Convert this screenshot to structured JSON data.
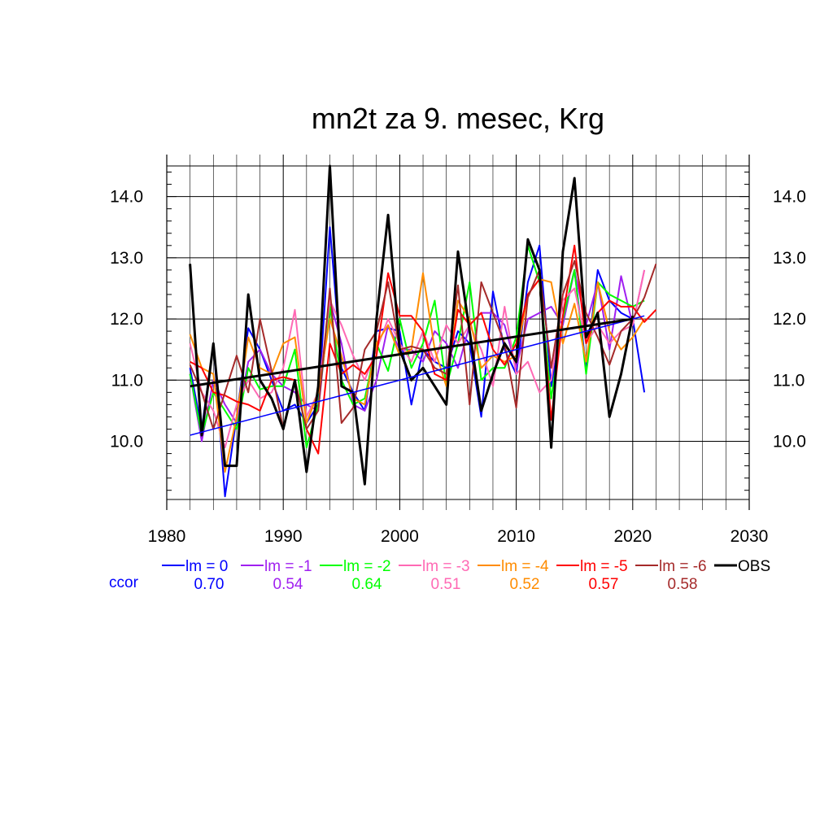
{
  "chart_data": {
    "type": "line",
    "title": "mn2t za 9. mesec, Krg",
    "xlabel": "",
    "ylabel": "",
    "xlim": [
      1980,
      2030
    ],
    "ylim": [
      9.05,
      14.5
    ],
    "x_ticks": [
      1980,
      1990,
      2000,
      2010,
      2020,
      2030
    ],
    "x_tick_labels": [
      "1980",
      "1990",
      "2000",
      "2010",
      "2020",
      "2030"
    ],
    "y_ticks": [
      10.0,
      11.0,
      12.0,
      13.0,
      14.0
    ],
    "y_tick_labels": [
      "10.0",
      "11.0",
      "12.0",
      "13.0",
      "14.0"
    ],
    "grid": true,
    "legend_position": "bottom",
    "ccor_label": "ccor",
    "series": [
      {
        "name": "lm = 0",
        "ccor": "0.70",
        "color": "#0000ff",
        "x": [
          1982,
          1983,
          1984,
          1985,
          1986,
          1987,
          1988,
          1989,
          1990,
          1991,
          1992,
          1993,
          1994,
          1995,
          1996,
          1997,
          1998,
          1999,
          2000,
          2001,
          2002,
          2003,
          2004,
          2005,
          2006,
          2007,
          2008,
          2009,
          2010,
          2011,
          2012,
          2013,
          2014,
          2015,
          2016,
          2017,
          2018,
          2019,
          2020,
          2021
        ],
        "y": [
          11.2,
          10.2,
          11.6,
          9.1,
          10.4,
          11.85,
          11.5,
          11.0,
          10.5,
          10.6,
          10.3,
          10.6,
          13.5,
          11.2,
          10.8,
          10.5,
          11.8,
          11.85,
          11.8,
          10.6,
          11.5,
          11.3,
          11.2,
          11.8,
          11.6,
          10.4,
          12.45,
          11.5,
          11.1,
          12.6,
          13.2,
          10.9,
          12.0,
          12.8,
          11.2,
          12.8,
          12.3,
          12.1,
          12.0,
          10.8
        ],
        "trend": [
          10.1,
          12.05
        ]
      },
      {
        "name": "lm = -1",
        "ccor": "0.54",
        "color": "#a020f0",
        "x": [
          1982,
          1983,
          1984,
          1985,
          1986,
          1987,
          1988,
          1989,
          1990,
          1991,
          1992,
          1993,
          1994,
          1995,
          1996,
          1997,
          1998,
          1999,
          2000,
          2001,
          2002,
          2003,
          2004,
          2005,
          2006,
          2007,
          2008,
          2009,
          2010,
          2011,
          2012,
          2013,
          2014,
          2015,
          2016,
          2017,
          2018,
          2019,
          2020,
          2021
        ],
        "y": [
          11.1,
          10.0,
          11.0,
          10.6,
          10.3,
          11.3,
          11.5,
          11.1,
          10.9,
          10.8,
          10.6,
          10.5,
          12.3,
          11.6,
          10.6,
          10.5,
          11.0,
          11.9,
          11.5,
          11.5,
          11.3,
          11.8,
          11.6,
          11.2,
          11.9,
          12.1,
          12.1,
          11.9,
          11.2,
          12.0,
          12.1,
          12.2,
          11.9,
          12.8,
          11.9,
          12.6,
          11.5,
          12.7,
          11.9,
          12.8
        ]
      },
      {
        "name": "lm = -2",
        "ccor": "0.64",
        "color": "#00ff00",
        "x": [
          1982,
          1983,
          1984,
          1985,
          1986,
          1987,
          1988,
          1989,
          1990,
          1991,
          1992,
          1993,
          1994,
          1995,
          1996,
          1997,
          1998,
          1999,
          2000,
          2001,
          2002,
          2003,
          2004,
          2005,
          2006,
          2007,
          2008,
          2009,
          2010,
          2011,
          2012,
          2013,
          2014,
          2015,
          2016,
          2017,
          2018,
          2019,
          2020,
          2021
        ],
        "y": [
          11.1,
          10.1,
          10.8,
          10.5,
          10.2,
          11.2,
          10.85,
          10.9,
          10.9,
          11.5,
          9.9,
          10.6,
          12.2,
          11.0,
          10.6,
          10.7,
          11.6,
          11.15,
          12.0,
          11.2,
          11.6,
          12.3,
          10.9,
          11.6,
          12.6,
          11.0,
          11.2,
          11.2,
          11.7,
          13.2,
          12.6,
          10.7,
          12.0,
          12.8,
          11.1,
          12.6,
          12.4,
          12.3,
          12.2,
          12.3
        ]
      },
      {
        "name": "lm = -3",
        "ccor": "0.51",
        "color": "#ff69b4",
        "x": [
          1982,
          1983,
          1984,
          1985,
          1986,
          1987,
          1988,
          1989,
          1990,
          1991,
          1992,
          1993,
          1994,
          1995,
          1996,
          1997,
          1998,
          1999,
          2000,
          2001,
          2002,
          2003,
          2004,
          2005,
          2006,
          2007,
          2008,
          2009,
          2010,
          2011,
          2012,
          2013,
          2014,
          2015,
          2016,
          2017,
          2018,
          2019,
          2020,
          2021
        ],
        "y": [
          11.6,
          10.8,
          10.5,
          9.9,
          10.6,
          11.0,
          10.7,
          10.8,
          11.2,
          12.15,
          10.4,
          10.8,
          12.3,
          11.9,
          11.4,
          11.0,
          11.5,
          12.0,
          11.6,
          11.3,
          11.8,
          11.3,
          11.9,
          11.6,
          11.9,
          11.5,
          10.9,
          12.2,
          11.1,
          11.3,
          10.8,
          11.0,
          12.3,
          12.5,
          11.6,
          11.9,
          11.6,
          11.8,
          11.9,
          12.8
        ]
      },
      {
        "name": "lm = -4",
        "ccor": "0.52",
        "color": "#ff8c00",
        "x": [
          1982,
          1983,
          1984,
          1985,
          1986,
          1987,
          1988,
          1989,
          1990,
          1991,
          1992,
          1993,
          1994,
          1995,
          1996,
          1997,
          1998,
          1999,
          2000,
          2001,
          2002,
          2003,
          2004,
          2005,
          2006,
          2007,
          2008,
          2009,
          2010,
          2011,
          2012,
          2013,
          2014,
          2015,
          2016,
          2017,
          2018,
          2019,
          2020,
          2021
        ],
        "y": [
          11.75,
          11.2,
          11.1,
          9.5,
          10.4,
          11.7,
          11.2,
          11.1,
          11.6,
          11.7,
          10.3,
          10.8,
          12.0,
          11.4,
          10.7,
          10.6,
          11.6,
          11.9,
          11.4,
          11.5,
          12.75,
          11.5,
          10.9,
          12.3,
          12.0,
          11.2,
          11.4,
          11.3,
          11.4,
          12.4,
          12.65,
          12.6,
          11.6,
          12.25,
          11.3,
          12.6,
          11.8,
          11.5,
          11.7,
          12.0
        ]
      },
      {
        "name": "lm = -5",
        "ccor": "0.57",
        "color": "#ff0000",
        "x": [
          1982,
          1983,
          1984,
          1985,
          1986,
          1987,
          1988,
          1989,
          1990,
          1991,
          1992,
          1993,
          1994,
          1995,
          1996,
          1997,
          1998,
          1999,
          2000,
          2001,
          2002,
          2003,
          2004,
          2005,
          2006,
          2007,
          2008,
          2009,
          2010,
          2011,
          2012,
          2013,
          2014,
          2015,
          2016,
          2017,
          2018,
          2019,
          2020,
          2021,
          2022
        ],
        "y": [
          11.3,
          11.2,
          10.8,
          10.75,
          10.65,
          10.6,
          10.5,
          11.0,
          11.05,
          11.0,
          10.2,
          9.8,
          11.6,
          11.1,
          11.25,
          11.1,
          11.4,
          12.75,
          12.05,
          12.05,
          11.8,
          11.1,
          11.0,
          12.15,
          11.9,
          12.1,
          11.5,
          11.25,
          11.6,
          12.4,
          12.65,
          10.35,
          12.05,
          13.2,
          11.6,
          12.1,
          12.3,
          12.2,
          12.2,
          11.95,
          12.15
        ]
      },
      {
        "name": "lm = -6",
        "ccor": "0.58",
        "color": "#a52a2a",
        "x": [
          1982,
          1983,
          1984,
          1985,
          1986,
          1987,
          1988,
          1989,
          1990,
          1991,
          1992,
          1993,
          1994,
          1995,
          1996,
          1997,
          1998,
          1999,
          2000,
          2001,
          2002,
          2003,
          2004,
          2005,
          2006,
          2007,
          2008,
          2009,
          2010,
          2011,
          2012,
          2013,
          2014,
          2015,
          2016,
          2017,
          2018,
          2019,
          2020,
          2021,
          2022
        ],
        "y": [
          11.25,
          10.8,
          10.2,
          10.8,
          11.4,
          10.8,
          12.0,
          11.15,
          10.2,
          11.0,
          10.2,
          10.5,
          12.5,
          10.3,
          10.55,
          11.5,
          11.8,
          12.6,
          11.5,
          11.55,
          11.5,
          11.2,
          11.1,
          12.55,
          10.6,
          12.6,
          12.1,
          11.6,
          10.55,
          12.35,
          12.8,
          11.2,
          12.4,
          12.95,
          12.1,
          11.7,
          11.25,
          11.8,
          12.0,
          12.35,
          12.9
        ]
      },
      {
        "name": "OBS",
        "ccor": "",
        "color": "#000000",
        "bold": true,
        "x": [
          1982,
          1983,
          1984,
          1985,
          1986,
          1987,
          1988,
          1989,
          1990,
          1991,
          1992,
          1993,
          1994,
          1995,
          1996,
          1997,
          1998,
          1999,
          2000,
          2001,
          2002,
          2003,
          2004,
          2005,
          2006,
          2007,
          2008,
          2009,
          2010,
          2011,
          2012,
          2013,
          2014,
          2015,
          2016,
          2017,
          2018,
          2019,
          2020
        ],
        "y": [
          12.9,
          10.1,
          11.6,
          9.6,
          9.6,
          12.4,
          11.0,
          10.7,
          10.2,
          11.0,
          9.5,
          10.9,
          14.5,
          10.9,
          10.8,
          9.3,
          12.0,
          13.7,
          11.5,
          11.0,
          11.2,
          10.9,
          10.6,
          13.1,
          11.8,
          10.5,
          11.1,
          11.6,
          11.3,
          13.3,
          12.8,
          9.9,
          13.1,
          14.3,
          11.7,
          12.1,
          10.4,
          11.1,
          12.05
        ],
        "trend": [
          10.9,
          12.0
        ]
      }
    ]
  }
}
